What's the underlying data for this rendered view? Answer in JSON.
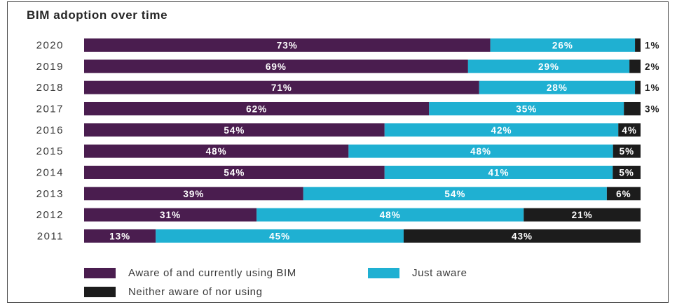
{
  "chart_data": {
    "type": "bar",
    "orientation": "horizontal",
    "stacked": true,
    "title": "BIM adoption over time",
    "categories": [
      "2020",
      "2019",
      "2018",
      "2017",
      "2016",
      "2015",
      "2014",
      "2013",
      "2012",
      "2011"
    ],
    "unit": "%",
    "series": [
      {
        "name": "Aware of and currently using BIM",
        "color": "#4a1d4f",
        "values": [
          73,
          69,
          71,
          62,
          54,
          48,
          54,
          39,
          31,
          13
        ]
      },
      {
        "name": "Just aware",
        "color": "#1fb0d2",
        "values": [
          26,
          29,
          28,
          35,
          42,
          48,
          41,
          54,
          48,
          45
        ]
      },
      {
        "name": "Neither aware of nor using",
        "color": "#1c1c1c",
        "values": [
          1,
          2,
          1,
          3,
          4,
          5,
          5,
          6,
          21,
          43
        ]
      }
    ],
    "xlim": [
      0,
      100
    ],
    "grid": false,
    "legend_position": "bottom"
  }
}
